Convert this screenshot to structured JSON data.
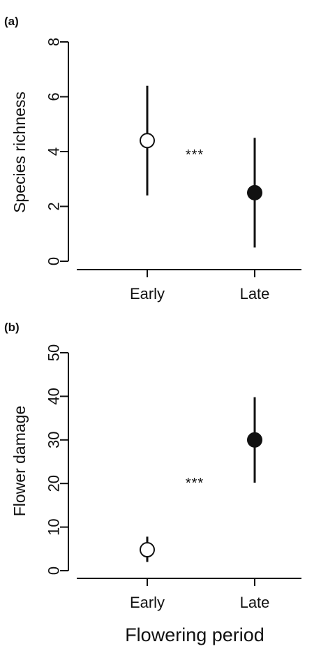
{
  "xaxis_title": "Flowering period",
  "colors": {
    "axis": "#111111",
    "early_fill": "#ffffff",
    "late_fill": "#111111"
  },
  "chart_data": [
    {
      "type": "scatter",
      "panel_label": "(a)",
      "ylabel": "Species richness",
      "categories": [
        "Early",
        "Late"
      ],
      "values": [
        4.4,
        2.5
      ],
      "error_low": [
        2.4,
        0.5
      ],
      "error_high": [
        6.4,
        4.5
      ],
      "ylim": [
        0,
        8
      ],
      "yticks": [
        0,
        2,
        4,
        6,
        8
      ],
      "significance": "***",
      "marker_fill": [
        "open",
        "filled"
      ]
    },
    {
      "type": "scatter",
      "panel_label": "(b)",
      "ylabel": "Flower damage",
      "categories": [
        "Early",
        "Late"
      ],
      "values": [
        4.8,
        30
      ],
      "error_low": [
        2,
        20.2
      ],
      "error_high": [
        7.8,
        39.8
      ],
      "ylim": [
        0,
        50
      ],
      "yticks": [
        0,
        10,
        20,
        30,
        40,
        50
      ],
      "significance": "***",
      "marker_fill": [
        "open",
        "filled"
      ]
    }
  ]
}
